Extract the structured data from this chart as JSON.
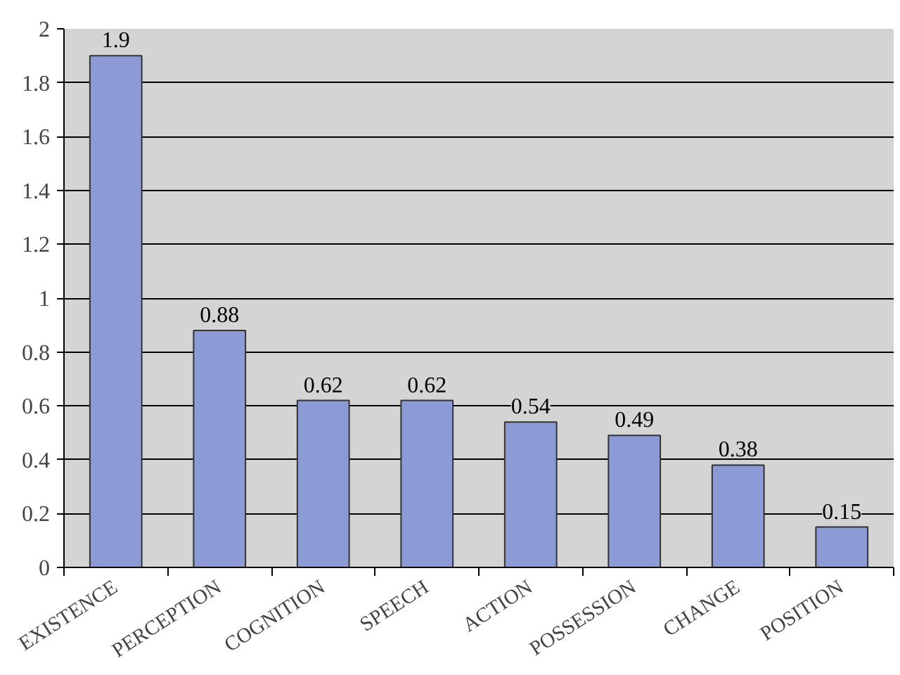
{
  "chart_data": {
    "type": "bar",
    "categories": [
      "EXISTENCE",
      "PERCEPTION",
      "COGNITION",
      "SPEECH",
      "ACTION",
      "POSSESSION",
      "CHANGE",
      "POSITION"
    ],
    "values": [
      1.9,
      0.88,
      0.62,
      0.62,
      0.54,
      0.49,
      0.38,
      0.15
    ],
    "color": "#8c9ad6",
    "ylim": [
      0,
      2
    ],
    "yticks": [
      0,
      0.2,
      0.4,
      0.6,
      0.8,
      1,
      1.2,
      1.4,
      1.6,
      1.8,
      2
    ],
    "grid": "y",
    "data_labels": true
  }
}
